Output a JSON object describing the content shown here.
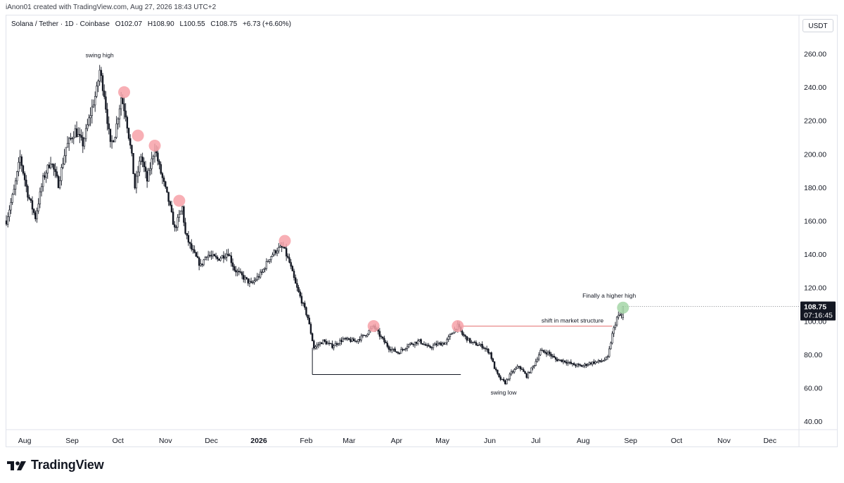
{
  "header": {
    "credit": "iAnon01 created with TradingView.com, Aug 27, 2026 18:43 UTC+2",
    "symbol": "Solana / Tether · 1D · Coinbase",
    "open": "O102.07",
    "high": "H108.90",
    "low": "L100.55",
    "close": "C108.75",
    "change": "+6.73 (+6.60%)",
    "currency": "USDT"
  },
  "brand": {
    "name": "TradingView",
    "icon": "tradingview-logo-icon"
  },
  "colors": {
    "up": "#131722",
    "down": "#131722",
    "red_marker": "#f7a1a8",
    "green_marker": "#a5d6a7",
    "level_line": "#e57373",
    "price_tag": "#131722"
  },
  "chart_data": {
    "type": "candlestick",
    "title": "Solana / Tether · 1D · Coinbase",
    "xlabel": "",
    "ylabel": "",
    "ylim": [
      35,
      272
    ],
    "y_ticks": [
      "260.00",
      "240.00",
      "220.00",
      "200.00",
      "180.00",
      "160.00",
      "140.00",
      "120.00",
      "100.00",
      "80.00",
      "60.00",
      "40.00"
    ],
    "x_ticks": [
      "Aug",
      "Sep",
      "Oct",
      "Nov",
      "Dec",
      "2026",
      "Feb",
      "Mar",
      "Apr",
      "May",
      "Jun",
      "Jul",
      "Aug",
      "Sep",
      "Oct",
      "Nov",
      "Dec"
    ],
    "x_tick_dates": [
      "2025-08-01",
      "2025-09-01",
      "2025-10-01",
      "2025-11-01",
      "2025-12-01",
      "2026-01-01",
      "2026-02-01",
      "2026-03-01",
      "2026-04-01",
      "2026-05-01",
      "2026-06-01",
      "2026-07-01",
      "2026-08-01",
      "2026-09-01",
      "2026-10-01",
      "2026-11-01",
      "2026-12-01"
    ],
    "x_range": [
      "2025-07-20",
      "2026-12-20"
    ],
    "close_path": [
      [
        "2025-07-20",
        160
      ],
      [
        "2025-07-25",
        178
      ],
      [
        "2025-07-29",
        198
      ],
      [
        "2025-08-03",
        176
      ],
      [
        "2025-08-08",
        162
      ],
      [
        "2025-08-13",
        185
      ],
      [
        "2025-08-18",
        196
      ],
      [
        "2025-08-23",
        182
      ],
      [
        "2025-08-28",
        204
      ],
      [
        "2025-09-03",
        214
      ],
      [
        "2025-09-08",
        206
      ],
      [
        "2025-09-13",
        224
      ],
      [
        "2025-09-17",
        238
      ],
      [
        "2025-09-19",
        250
      ],
      [
        "2025-09-22",
        236
      ],
      [
        "2025-09-26",
        205
      ],
      [
        "2025-09-29",
        212
      ],
      [
        "2025-10-03",
        234
      ],
      [
        "2025-10-06",
        224
      ],
      [
        "2025-10-10",
        198
      ],
      [
        "2025-10-12",
        180
      ],
      [
        "2025-10-16",
        199
      ],
      [
        "2025-10-20",
        184
      ],
      [
        "2025-10-25",
        204
      ],
      [
        "2025-10-28",
        192
      ],
      [
        "2025-11-03",
        172
      ],
      [
        "2025-11-07",
        155
      ],
      [
        "2025-11-12",
        168
      ],
      [
        "2025-11-14",
        152
      ],
      [
        "2025-11-18",
        143
      ],
      [
        "2025-11-24",
        133
      ],
      [
        "2025-11-28",
        140
      ],
      [
        "2025-12-05",
        137
      ],
      [
        "2025-12-12",
        141
      ],
      [
        "2025-12-16",
        131
      ],
      [
        "2025-12-22",
        126
      ],
      [
        "2025-12-27",
        122
      ],
      [
        "2026-01-03",
        129
      ],
      [
        "2026-01-08",
        138
      ],
      [
        "2026-01-13",
        143
      ],
      [
        "2026-01-17",
        144
      ],
      [
        "2026-01-21",
        135
      ],
      [
        "2026-01-25",
        122
      ],
      [
        "2026-01-29",
        112
      ],
      [
        "2026-02-02",
        102
      ],
      [
        "2026-02-06",
        84
      ],
      [
        "2026-02-12",
        88
      ],
      [
        "2026-02-18",
        85
      ],
      [
        "2026-02-25",
        89
      ],
      [
        "2026-03-05",
        88
      ],
      [
        "2026-03-12",
        92
      ],
      [
        "2026-03-17",
        97
      ],
      [
        "2026-03-22",
        90
      ],
      [
        "2026-03-27",
        84
      ],
      [
        "2026-04-02",
        81
      ],
      [
        "2026-04-09",
        86
      ],
      [
        "2026-04-16",
        88
      ],
      [
        "2026-04-22",
        84
      ],
      [
        "2026-04-27",
        86
      ],
      [
        "2026-05-03",
        87
      ],
      [
        "2026-05-08",
        94
      ],
      [
        "2026-05-11",
        97
      ],
      [
        "2026-05-14",
        92
      ],
      [
        "2026-05-20",
        87
      ],
      [
        "2026-05-27",
        85
      ],
      [
        "2026-06-01",
        81
      ],
      [
        "2026-06-04",
        72
      ],
      [
        "2026-06-07",
        66
      ],
      [
        "2026-06-11",
        63
      ],
      [
        "2026-06-15",
        69
      ],
      [
        "2026-06-20",
        73
      ],
      [
        "2026-06-25",
        67
      ],
      [
        "2026-06-30",
        74
      ],
      [
        "2026-07-04",
        82
      ],
      [
        "2026-07-09",
        81
      ],
      [
        "2026-07-14",
        77
      ],
      [
        "2026-07-20",
        76
      ],
      [
        "2026-07-25",
        74
      ],
      [
        "2026-07-31",
        73
      ],
      [
        "2026-08-06",
        75
      ],
      [
        "2026-08-13",
        76
      ],
      [
        "2026-08-17",
        78
      ],
      [
        "2026-08-20",
        92
      ],
      [
        "2026-08-23",
        102
      ],
      [
        "2026-08-26",
        104
      ],
      [
        "2026-08-27",
        108.75
      ]
    ],
    "last_price": {
      "value": 108.75,
      "label": "108.75",
      "countdown": "07:16:45"
    },
    "markers": [
      {
        "type": "red",
        "date": "2025-10-05",
        "value": 237
      },
      {
        "type": "red",
        "date": "2025-10-14",
        "value": 211
      },
      {
        "type": "red",
        "date": "2025-10-25",
        "value": 205
      },
      {
        "type": "red",
        "date": "2025-11-10",
        "value": 172
      },
      {
        "type": "red",
        "date": "2026-01-18",
        "value": 148
      },
      {
        "type": "red",
        "date": "2026-03-17",
        "value": 97
      },
      {
        "type": "red",
        "date": "2026-05-11",
        "value": 97
      },
      {
        "type": "green",
        "date": "2026-08-27",
        "value": 108
      }
    ],
    "lines": [
      {
        "name": "shift-in-market-structure",
        "from": [
          "2026-05-12",
          97
        ],
        "to": [
          "2026-08-20",
          97
        ],
        "color": "#e57373"
      },
      {
        "name": "range-low-line",
        "from": [
          "2026-02-05",
          68
        ],
        "to": [
          "2026-05-13",
          68
        ],
        "color": "#131722",
        "drop_from": 84
      }
    ],
    "annotations": [
      {
        "text": "swing high",
        "date": "2025-09-19",
        "value": 258
      },
      {
        "text": "shift in market structure",
        "date": "2026-07-25",
        "value": 99
      },
      {
        "text": "Finally a higher high",
        "date": "2026-08-18",
        "value": 114
      },
      {
        "text": "swing low",
        "date": "2026-06-10",
        "value": 56
      }
    ]
  }
}
